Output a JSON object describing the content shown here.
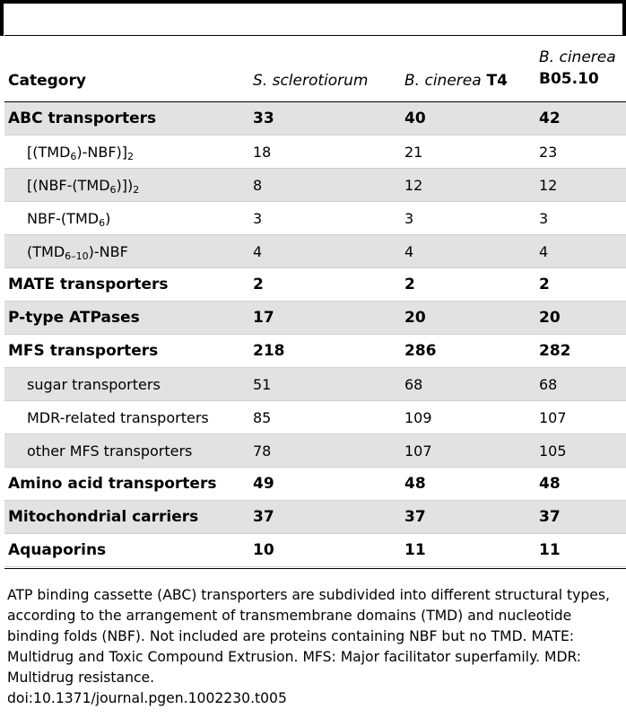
{
  "table": {
    "headers": {
      "category": "Category",
      "col1": "S. sclerotiorum",
      "col2_italic": "B. cinerea",
      "col2_rest": " T4",
      "col3_line1": "B. cinerea",
      "col3_line2": "B05.10"
    },
    "rows": [
      {
        "kind": "bold",
        "label": "ABC transporters",
        "v1": "33",
        "v2": "40",
        "v3": "42"
      },
      {
        "kind": "sub",
        "label_html": "[(TMD<sub>6</sub>)-NBF)]<sub>2</sub>",
        "v1": "18",
        "v2": "21",
        "v3": "23"
      },
      {
        "kind": "sub",
        "label_html": "[(NBF-(TMD<sub>6</sub>)])<sub>2</sub>",
        "v1": "8",
        "v2": "12",
        "v3": "12"
      },
      {
        "kind": "sub",
        "label_html": "NBF-(TMD<sub>6</sub>)",
        "v1": "3",
        "v2": "3",
        "v3": "3"
      },
      {
        "kind": "sub",
        "label_html": "(TMD<sub>6–10</sub>)-NBF",
        "v1": "4",
        "v2": "4",
        "v3": "4"
      },
      {
        "kind": "bold",
        "label": "MATE transporters",
        "v1": "2",
        "v2": "2",
        "v3": "2"
      },
      {
        "kind": "bold",
        "label": "P-type ATPases",
        "v1": "17",
        "v2": "20",
        "v3": "20"
      },
      {
        "kind": "bold",
        "label": "MFS transporters",
        "v1": "218",
        "v2": "286",
        "v3": "282"
      },
      {
        "kind": "sub",
        "label": "sugar transporters",
        "v1": "51",
        "v2": "68",
        "v3": "68"
      },
      {
        "kind": "sub",
        "label": "MDR-related transporters",
        "v1": "85",
        "v2": "109",
        "v3": "107"
      },
      {
        "kind": "sub",
        "label": "other MFS transporters",
        "v1": "78",
        "v2": "107",
        "v3": "105"
      },
      {
        "kind": "bold",
        "label": "Amino acid transporters",
        "v1": "49",
        "v2": "48",
        "v3": "48"
      },
      {
        "kind": "bold",
        "label": "Mitochondrial carriers",
        "v1": "37",
        "v2": "37",
        "v3": "37"
      },
      {
        "kind": "bold",
        "label": "Aquaporins",
        "v1": "10",
        "v2": "11",
        "v3": "11"
      }
    ]
  },
  "footnote": {
    "text": "ATP binding cassette (ABC) transporters are subdivided into different structural types, according to the arrangement of transmembrane domains (TMD) and nucleotide binding folds (NBF). Not included are proteins containing NBF but no TMD. MATE: Multidrug and Toxic Compound Extrusion. MFS: Major facilitator superfamily. MDR: Multidrug resistance.",
    "doi": "doi:10.1371/journal.pgen.1002230.t005"
  }
}
